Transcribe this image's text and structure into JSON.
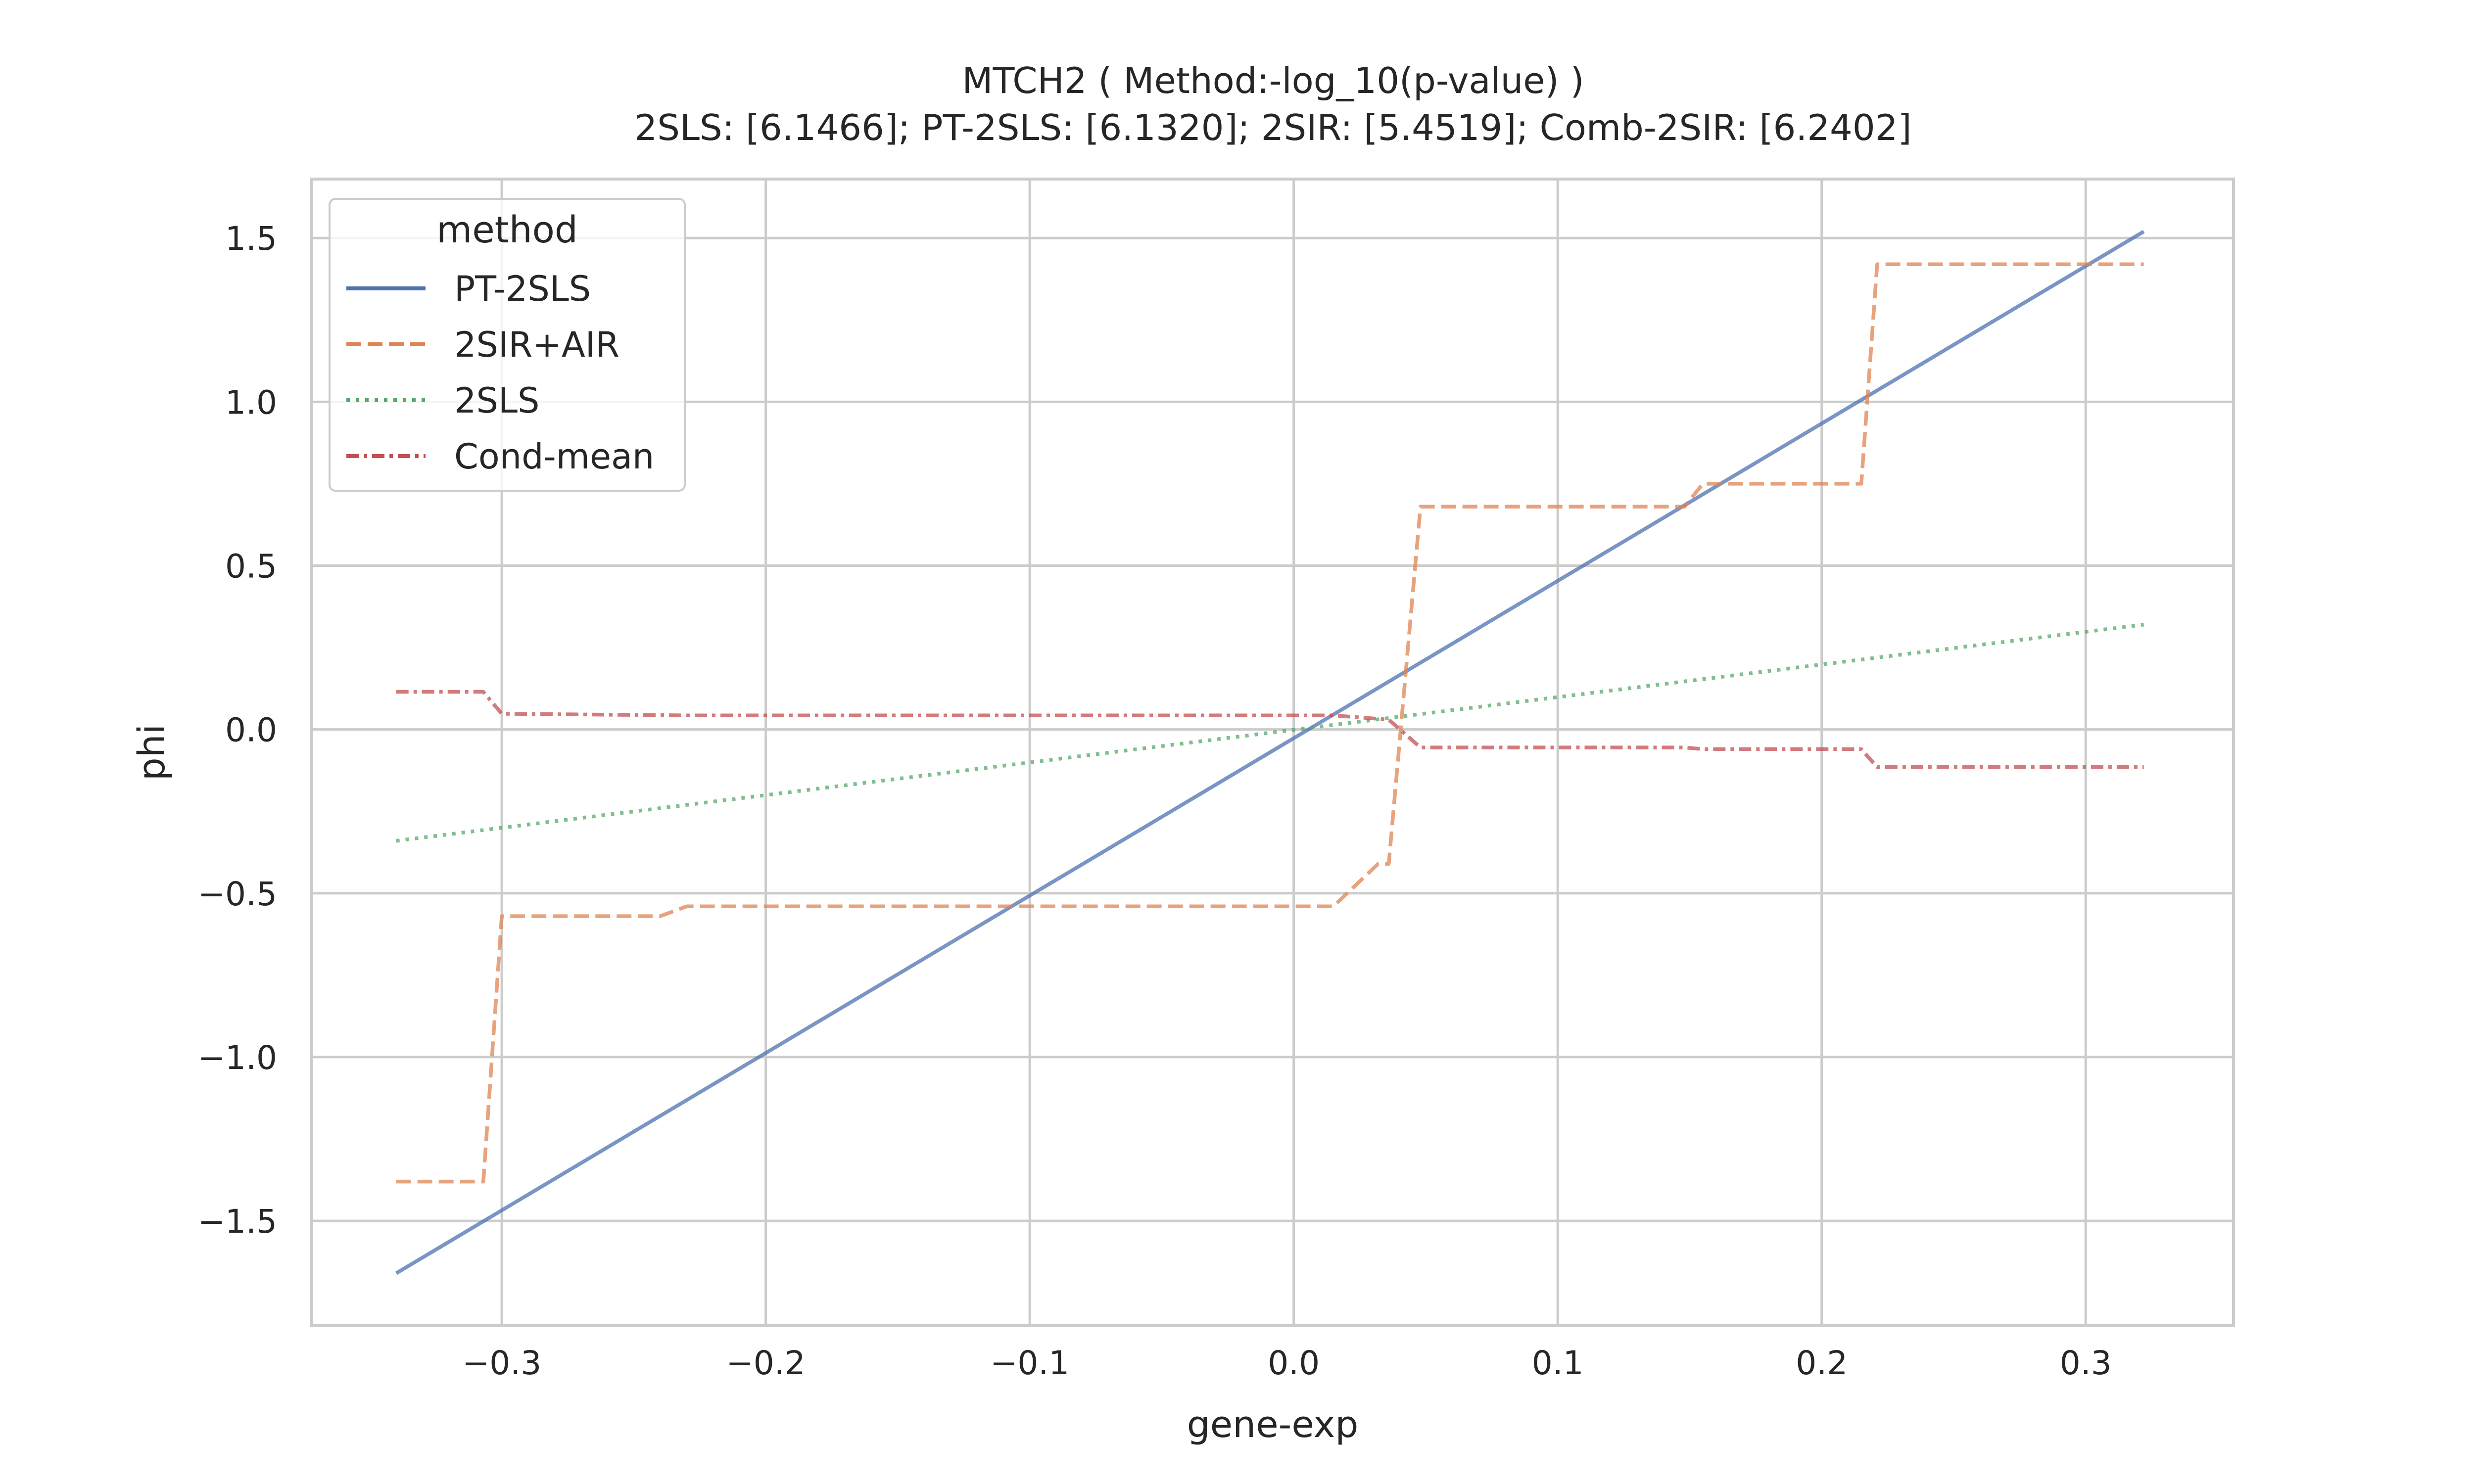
{
  "chart_data": {
    "type": "line",
    "title": "MTCH2 ( Method:-log_10(p-value) )",
    "subtitle": "2SLS: [6.1466]; PT-2SLS: [6.1320]; 2SIR: [5.4519]; Comb-2SIR: [6.2402]",
    "xlabel": "gene-exp",
    "ylabel": "phi",
    "xlim": [
      -0.372,
      0.356
    ],
    "ylim": [
      -1.82,
      1.68
    ],
    "xticks": [
      -0.3,
      -0.2,
      -0.1,
      0.0,
      0.1,
      0.2,
      0.3
    ],
    "xtick_labels": [
      "−0.3",
      "−0.2",
      "−0.1",
      "0.0",
      "0.1",
      "0.2",
      "0.3"
    ],
    "yticks": [
      -1.5,
      -1.0,
      -0.5,
      0.0,
      0.5,
      1.0,
      1.5
    ],
    "ytick_labels": [
      "−1.5",
      "−1.0",
      "−0.5",
      "0.0",
      "0.5",
      "1.0",
      "1.5"
    ],
    "grid": true,
    "legend": {
      "title": "method",
      "placement": "top-left"
    },
    "series": [
      {
        "name": "PT-2SLS",
        "color": "#4c72b0",
        "dash": "solid",
        "x": [
          -0.34,
          0.322
        ],
        "y": [
          -1.66,
          1.52
        ]
      },
      {
        "name": "2SIR+AIR",
        "color": "#dd8452",
        "dash": "dashed",
        "x": [
          -0.34,
          -0.307,
          -0.3,
          -0.24,
          -0.23,
          0.015,
          0.032,
          0.036,
          0.048,
          0.148,
          0.155,
          0.215,
          0.221,
          0.322
        ],
        "y": [
          -1.38,
          -1.38,
          -0.57,
          -0.57,
          -0.54,
          -0.54,
          -0.41,
          -0.41,
          0.68,
          0.68,
          0.75,
          0.75,
          1.42,
          1.42
        ]
      },
      {
        "name": "2SLS",
        "color": "#55a868",
        "dash": "dotted",
        "x": [
          -0.34,
          0.322
        ],
        "y": [
          -0.34,
          0.32
        ]
      },
      {
        "name": "Cond-mean",
        "color": "#c44e52",
        "dash": "dashdot",
        "x": [
          -0.34,
          -0.307,
          -0.3,
          -0.23,
          0.015,
          0.036,
          0.048,
          0.148,
          0.155,
          0.215,
          0.221,
          0.322
        ],
        "y": [
          0.115,
          0.115,
          0.048,
          0.043,
          0.043,
          0.03,
          -0.055,
          -0.055,
          -0.06,
          -0.06,
          -0.115,
          -0.115
        ]
      }
    ]
  }
}
